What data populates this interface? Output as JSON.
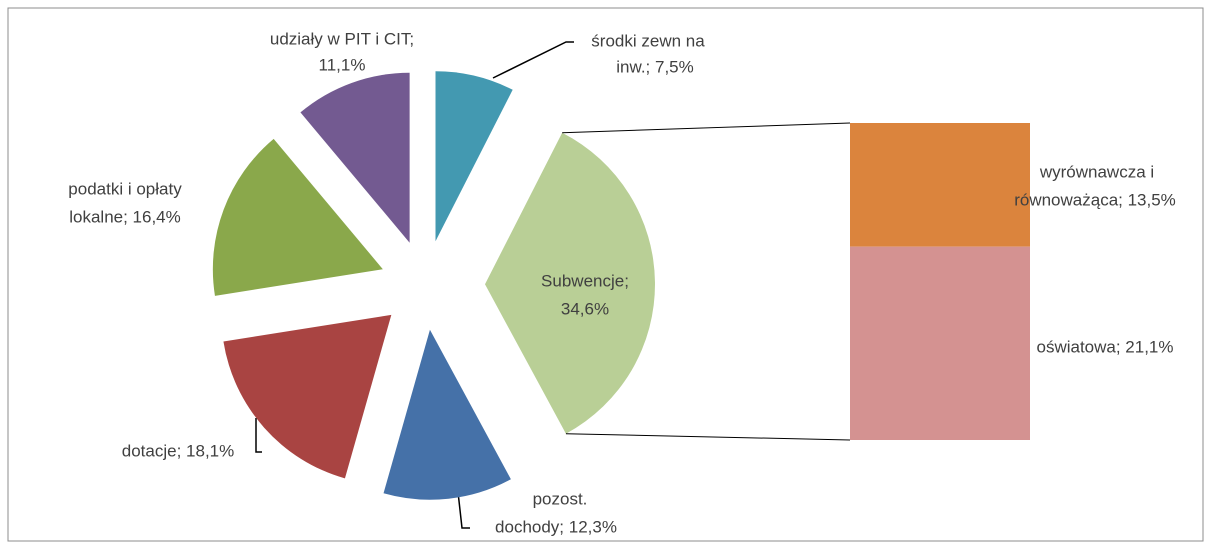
{
  "chart_data": {
    "type": "bar_of_pie",
    "series": [
      {
        "values": [
          7.5,
          34.6,
          12.3,
          18.1,
          16.4,
          11.1
        ],
        "colors": [
          "#4399b1",
          "#b9cf96",
          "#4571a8",
          "#a94442",
          "#8aa84b",
          "#735a91"
        ],
        "value_labels": [
          [
            "środki zewn na",
            "inw.; 7,5%"
          ],
          [
            "Subwencje;",
            "34,6%"
          ],
          [
            "pozost.",
            "dochody; 12,3%"
          ],
          [
            "dotacje; 18,1%"
          ],
          [
            "podatki i opłaty",
            "lokalne; 16,4%"
          ],
          [
            "udziały w PIT i CIT;",
            "11,1%"
          ]
        ]
      }
    ],
    "bar_series": {
      "values": [
        13.5,
        21.1
      ],
      "colors": [
        "#db843d",
        "#d49291"
      ],
      "value_labels": [
        [
          "wyrównawcza i",
          "równoważąca; 13,5%"
        ],
        [
          "oświatowa; 21,1%"
        ]
      ]
    }
  }
}
